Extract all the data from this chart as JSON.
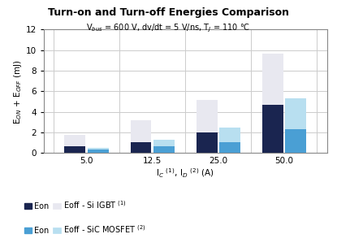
{
  "title": "Turn-on and Turn-off Energies Comparison",
  "subtitle": "V$_{bus}$ = 600 V, dv/dt = 5 V/ns, T$_J$ = 110 °C",
  "xlabel": "I$_C$ $^{(1)}$, I$_D$ $^{(2)}$ (A)",
  "ylabel": "E$_{ON}$ + E$_{OFF}$ (mJ)",
  "categories": [
    "5.0",
    "12.5",
    "25.0",
    "50.0"
  ],
  "igbt_eon": [
    0.65,
    1.1,
    2.0,
    4.7
  ],
  "igbt_eoff": [
    1.1,
    2.1,
    3.2,
    5.0
  ],
  "sic_eon": [
    0.35,
    0.65,
    1.1,
    2.3
  ],
  "sic_eoff": [
    0.15,
    0.65,
    1.4,
    3.0
  ],
  "color_igbt_eon": "#1a2550",
  "color_igbt_eoff": "#e8e8f0",
  "color_sic_eon": "#4a9fd4",
  "color_sic_eoff": "#b8dff0",
  "ylim": [
    0,
    12
  ],
  "yticks": [
    0,
    2,
    4,
    6,
    8,
    10,
    12
  ],
  "bar_width": 0.32,
  "bar_gap": 0.03,
  "background_color": "#ffffff",
  "grid_color": "#cccccc"
}
